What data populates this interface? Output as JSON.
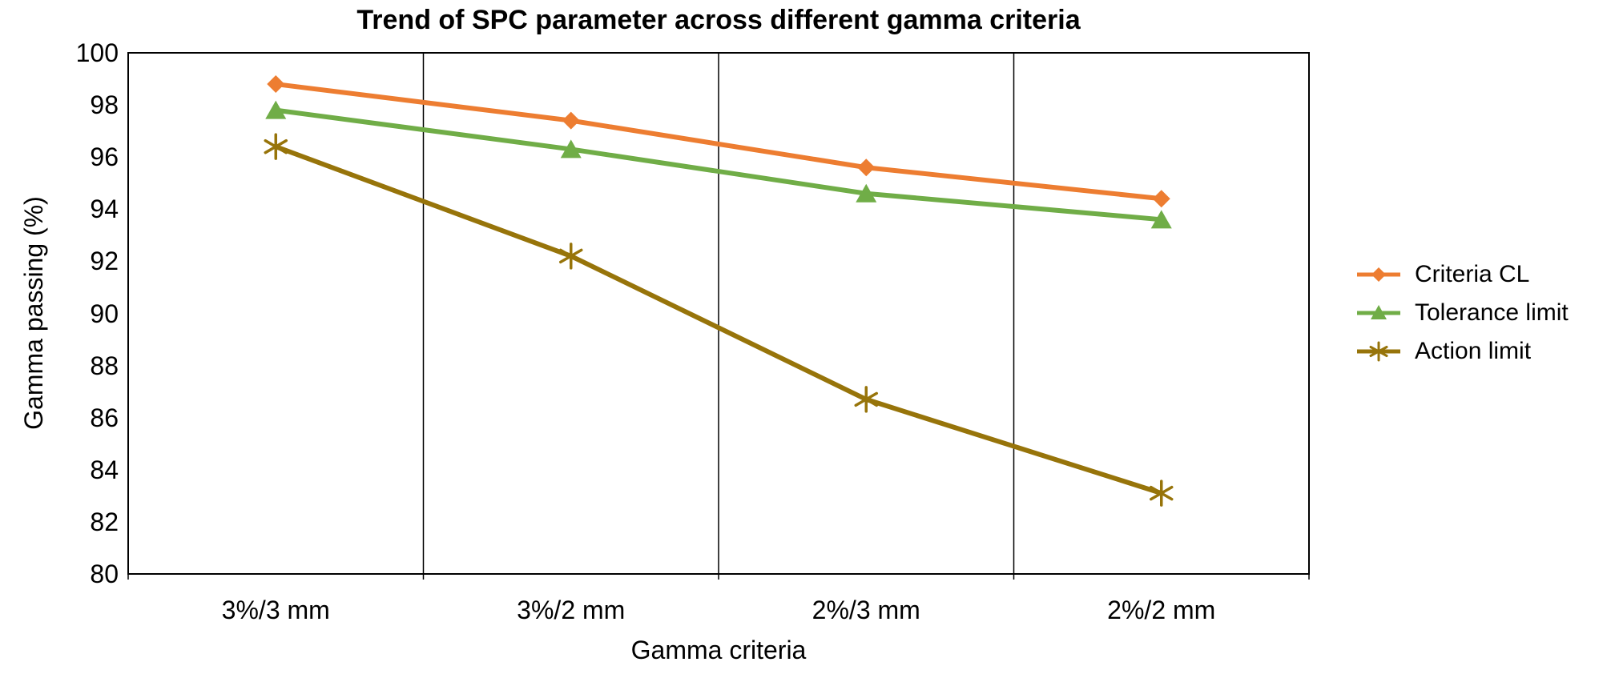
{
  "title": "Trend of SPC parameter across different gamma criteria",
  "chart_data": {
    "type": "line",
    "categories": [
      "3%/3 mm",
      "3%/2 mm",
      "2%/3 mm",
      "2%/2 mm"
    ],
    "series": [
      {
        "name": "Criteria CL",
        "marker": "diamond",
        "color": "#ED7D31",
        "values": [
          98.8,
          97.4,
          95.6,
          94.4
        ]
      },
      {
        "name": "Tolerance limit",
        "marker": "triangle",
        "color": "#70AD47",
        "values": [
          97.8,
          96.3,
          94.6,
          93.6
        ]
      },
      {
        "name": "Action limit",
        "marker": "asterisk",
        "color": "#97740A",
        "values": [
          96.4,
          92.2,
          86.7,
          83.1
        ]
      }
    ],
    "xlabel": "Gamma criteria",
    "ylabel": "Gamma passing (%)",
    "ylim": [
      80,
      100
    ],
    "ytick_step": 2,
    "grid": "vertical-category-boundaries-only",
    "legend_position": "right-middle",
    "axis_color": "#000000",
    "background_color": "#FFFFFF"
  }
}
